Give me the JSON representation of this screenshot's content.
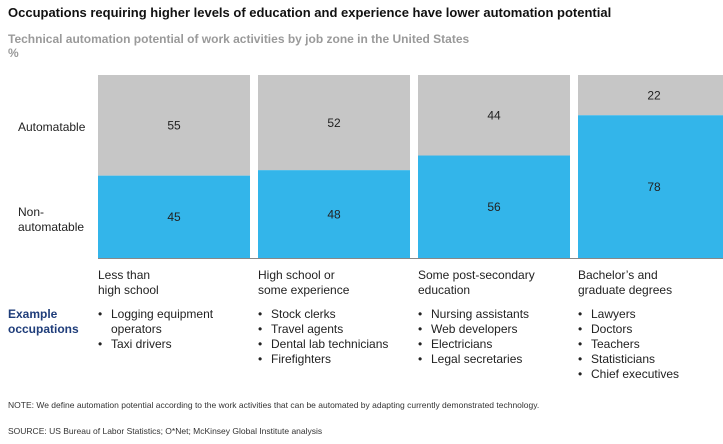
{
  "title": "Occupations requiring higher levels of education and experience have lower automation potential",
  "subtitle": "Technical automation potential of work activities by job zone in the United States",
  "unit": "%",
  "row_labels": {
    "automatable": "Automatable",
    "non_automatable_line1": "Non-",
    "non_automatable_line2": "automatable"
  },
  "colors": {
    "automatable": "#c6c6c6",
    "non_automatable": "#33b5ea"
  },
  "chart_data": {
    "type": "bar",
    "stacked": true,
    "ylim": [
      0,
      100
    ],
    "categories": [
      "Less than high school",
      "High school or some experience",
      "Some post-secondary education",
      "Bachelor’s and graduate degrees"
    ],
    "series": [
      {
        "name": "Non-automatable",
        "values": [
          45,
          48,
          56,
          78
        ]
      },
      {
        "name": "Automatable",
        "values": [
          55,
          52,
          44,
          22
        ]
      }
    ]
  },
  "categories": [
    {
      "line1": "Less than",
      "line2": "high school",
      "examples": [
        "Logging equipment operators",
        "Taxi drivers"
      ]
    },
    {
      "line1": "High school or",
      "line2": "some experience",
      "examples": [
        "Stock clerks",
        "Travel agents",
        "Dental lab technicians",
        "Firefighters"
      ]
    },
    {
      "line1": "Some post-secondary",
      "line2": "education",
      "examples": [
        "Nursing assistants",
        "Web developers",
        "Electricians",
        "Legal secretaries"
      ]
    },
    {
      "line1": "Bachelor’s and",
      "line2": "graduate degrees",
      "examples": [
        "Lawyers",
        "Doctors",
        "Teachers",
        "Statisticians",
        "Chief executives"
      ]
    }
  ],
  "example_label_line1": "Example",
  "example_label_line2": "occupations",
  "note": "NOTE: We define automation potential according to the work activities that can be automated by adapting currently demonstrated technology.",
  "source": "SOURCE: US Bureau of Labor Statistics; O*Net; McKinsey Global Institute analysis"
}
